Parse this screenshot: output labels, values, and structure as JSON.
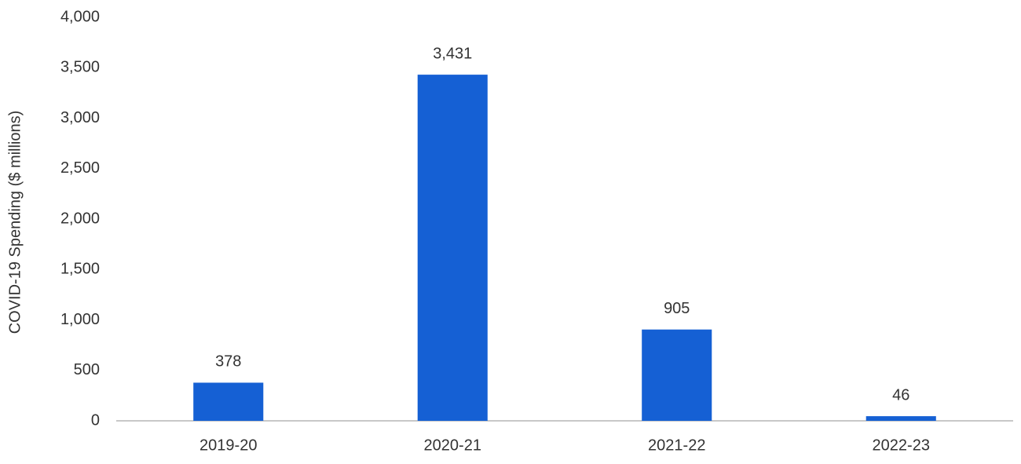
{
  "chart_data": {
    "type": "bar",
    "y_label": "COVID-19 Spending ($ millions)",
    "categories": [
      "2019-20",
      "2020-21",
      "2021-22",
      "2022-23"
    ],
    "values": [
      378,
      3431,
      905,
      46
    ],
    "value_labels": [
      "378",
      "3,431",
      "905",
      "46"
    ],
    "color": "#1560d4",
    "ylim": [
      0,
      4000
    ],
    "yticks": [
      0,
      500,
      {
        "value": 1000,
        "label": "1,000"
      },
      {
        "value": 1500,
        "label": "1,500"
      },
      {
        "value": 2000,
        "label": "2,000"
      },
      {
        "value": 2500,
        "label": "2,500"
      },
      {
        "value": 3000,
        "label": "3,000"
      },
      {
        "value": 3500,
        "label": "3,500"
      },
      {
        "value": 4000,
        "label": "4,000"
      }
    ],
    "grid": false
  }
}
